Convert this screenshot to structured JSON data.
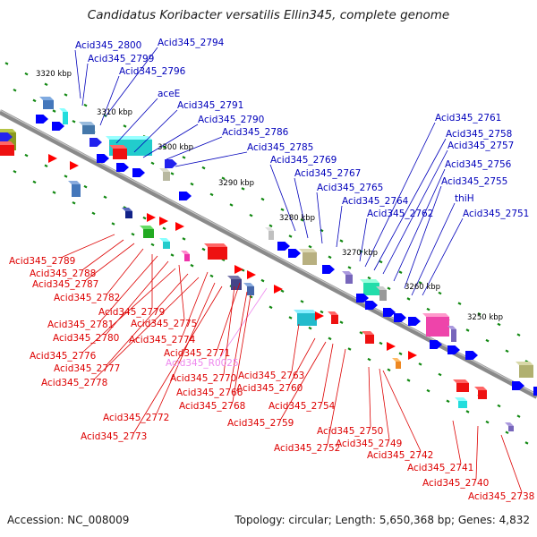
{
  "title": "Candidatus Koribacter versatilis Ellin345, complete genome",
  "accession": "Accession: NC_008009",
  "summary": "Topology: circular; Length: 5,650,368 bp; Genes: 4,832",
  "colors": {
    "forward_label": "#0000bb",
    "reverse_label": "#dd0000",
    "rna_label": "#ee88ee",
    "backbone": "#909090",
    "cds_forward": "#0000ff",
    "cds_reverse": "#ff0000",
    "tick": "#118811"
  },
  "scale": [
    {
      "label": "3320 kbp"
    },
    {
      "label": "3310 kbp"
    },
    {
      "label": "3300 kbp"
    },
    {
      "label": "3290 kbp"
    },
    {
      "label": "3280 kbp"
    },
    {
      "label": "3270 kbp"
    },
    {
      "label": "3260 kbp"
    },
    {
      "label": "3250 kbp"
    }
  ],
  "forward_labels": [
    {
      "text": "Acid345_2800"
    },
    {
      "text": "Acid345_2794"
    },
    {
      "text": "Acid345_2799"
    },
    {
      "text": "Acid345_2796"
    },
    {
      "text": "aceE"
    },
    {
      "text": "Acid345_2791"
    },
    {
      "text": "Acid345_2790"
    },
    {
      "text": "Acid345_2786"
    },
    {
      "text": "Acid345_2785"
    },
    {
      "text": "Acid345_2769"
    },
    {
      "text": "Acid345_2767"
    },
    {
      "text": "Acid345_2765"
    },
    {
      "text": "Acid345_2764"
    },
    {
      "text": "Acid345_2762"
    },
    {
      "text": "Acid345_2761"
    },
    {
      "text": "Acid345_2758"
    },
    {
      "text": "Acid345_2757"
    },
    {
      "text": "Acid345_2756"
    },
    {
      "text": "Acid345_2755"
    },
    {
      "text": "thiH"
    },
    {
      "text": "Acid345_2751"
    }
  ],
  "reverse_labels": [
    {
      "text": "Acid345_2789"
    },
    {
      "text": "Acid345_2788"
    },
    {
      "text": "Acid345_2787"
    },
    {
      "text": "Acid345_2782"
    },
    {
      "text": "Acid345_2779"
    },
    {
      "text": "Acid345_2781"
    },
    {
      "text": "Acid345_2775"
    },
    {
      "text": "Acid345_2780"
    },
    {
      "text": "Acid345_2774"
    },
    {
      "text": "Acid345_2776"
    },
    {
      "text": "Acid345_2771"
    },
    {
      "text": "Acid345_R0025"
    },
    {
      "text": "Acid345_2777"
    },
    {
      "text": "Acid345_2763"
    },
    {
      "text": "Acid345_2770"
    },
    {
      "text": "Acid345_2778"
    },
    {
      "text": "Acid345_2760"
    },
    {
      "text": "Acid345_2766"
    },
    {
      "text": "Acid345_2768"
    },
    {
      "text": "Acid345_2754"
    },
    {
      "text": "Acid345_2759"
    },
    {
      "text": "Acid345_2772"
    },
    {
      "text": "Acid345_2750"
    },
    {
      "text": "Acid345_2773"
    },
    {
      "text": "Acid345_2749"
    },
    {
      "text": "Acid345_2752"
    },
    {
      "text": "Acid345_2742"
    },
    {
      "text": "Acid345_2741"
    },
    {
      "text": "Acid345_2740"
    },
    {
      "text": "Acid345_2738"
    }
  ]
}
